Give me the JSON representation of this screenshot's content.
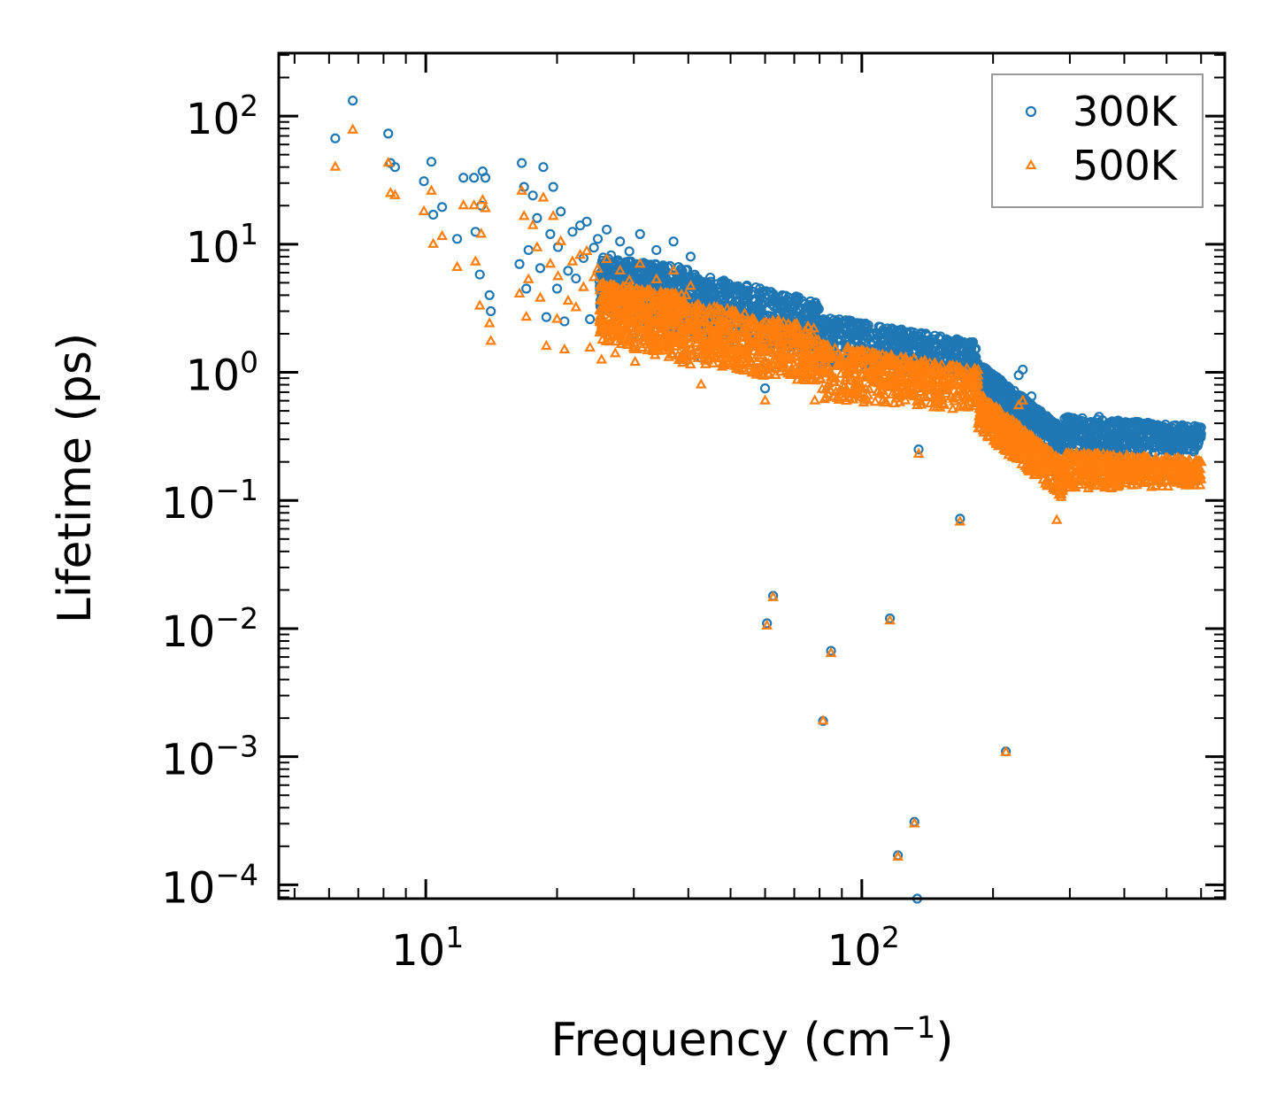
{
  "chart_data": {
    "type": "scatter",
    "title": "",
    "xlabel": "Frequency (cm",
    "xlabel_sup": "−1",
    "xlabel_tail": ")",
    "ylabel": "Lifetime (ps)",
    "xscale": "log",
    "yscale": "log",
    "xlim": [
      4.6,
      680
    ],
    "ylim": [
      7.8e-05,
      310
    ],
    "legend_position": "top-right",
    "x_ticks": [
      {
        "value": 10,
        "base": "10",
        "exp": "1"
      },
      {
        "value": 100,
        "base": "10",
        "exp": "2"
      }
    ],
    "y_ticks": [
      {
        "value": 100,
        "base": "10",
        "exp": "2"
      },
      {
        "value": 10,
        "base": "10",
        "exp": "1"
      },
      {
        "value": 1,
        "base": "10",
        "exp": "0"
      },
      {
        "value": 0.1,
        "base": "10",
        "exp": "−1"
      },
      {
        "value": 0.01,
        "base": "10",
        "exp": "−2"
      },
      {
        "value": 0.001,
        "base": "10",
        "exp": "−3"
      },
      {
        "value": 0.0001,
        "base": "10",
        "exp": "−4"
      }
    ],
    "series": [
      {
        "name": "300K",
        "marker": "circle",
        "color": "#1f77b4",
        "points": [
          [
            6.2,
            67
          ],
          [
            6.8,
            132
          ],
          [
            8.2,
            73
          ],
          [
            8.3,
            43
          ],
          [
            8.5,
            40
          ],
          [
            9.9,
            31
          ],
          [
            10.3,
            44
          ],
          [
            10.4,
            17
          ],
          [
            10.9,
            19.5
          ],
          [
            11.8,
            11
          ],
          [
            12.2,
            33
          ],
          [
            12.9,
            33
          ],
          [
            13.0,
            12.5
          ],
          [
            13.3,
            5.8
          ],
          [
            13.4,
            20
          ],
          [
            13.5,
            37
          ],
          [
            13.7,
            33
          ],
          [
            14.0,
            4.0
          ],
          [
            14.1,
            3.0
          ],
          [
            16.4,
            7.0
          ],
          [
            16.6,
            43
          ],
          [
            16.8,
            28
          ],
          [
            17.0,
            4.5
          ],
          [
            17.2,
            9.0
          ],
          [
            17.6,
            24
          ],
          [
            18.0,
            16
          ],
          [
            18.3,
            6.5
          ],
          [
            18.6,
            40
          ],
          [
            18.9,
            2.7
          ],
          [
            19.3,
            12
          ],
          [
            19.6,
            28
          ],
          [
            20.0,
            4.5
          ],
          [
            20.1,
            9.5
          ],
          [
            20.4,
            18
          ],
          [
            20.8,
            2.5
          ],
          [
            21.2,
            6.2
          ],
          [
            21.7,
            12.5
          ],
          [
            22.1,
            5.4
          ],
          [
            22.6,
            14
          ],
          [
            23.0,
            7.8
          ],
          [
            23.4,
            15
          ],
          [
            23.8,
            2.6
          ],
          [
            24.3,
            9.4
          ],
          [
            24.8,
            11.0
          ],
          [
            25.3,
            2.1
          ],
          [
            26.0,
            13
          ],
          [
            26.6,
            8.2
          ],
          [
            27.2,
            2.4
          ],
          [
            27.9,
            10.5
          ],
          [
            28.6,
            6.6
          ],
          [
            29.3,
            8.8
          ],
          [
            30.2,
            2.0
          ],
          [
            31.0,
            12
          ],
          [
            32.4,
            6.8
          ],
          [
            33.8,
            9.0
          ],
          [
            35.4,
            4.4
          ],
          [
            37.0,
            10.5
          ],
          [
            38.8,
            5.4
          ],
          [
            40.5,
            8.0
          ],
          [
            42.8,
            1.3
          ],
          [
            45.0,
            5.1
          ],
          [
            47.2,
            4.2
          ],
          [
            50.0,
            3.2
          ],
          [
            53.5,
            2.3
          ],
          [
            57.0,
            3.6
          ],
          [
            60.0,
            0.75
          ],
          [
            60.6,
            0.011
          ],
          [
            62.6,
            0.018
          ],
          [
            68.0,
            2.8
          ],
          [
            72.0,
            1.9
          ],
          [
            78.0,
            2.5
          ],
          [
            81.5,
            0.0019
          ],
          [
            85.0,
            0.0067
          ],
          [
            92.0,
            1.6
          ],
          [
            100.0,
            1.3
          ],
          [
            112.0,
            1.35
          ],
          [
            116.0,
            0.012
          ],
          [
            120.0,
            1.2
          ],
          [
            121.0,
            0.00017
          ],
          [
            132.0,
            0.00031
          ],
          [
            135.0,
            0.25
          ],
          [
            134.0,
            7.8e-05
          ],
          [
            150.0,
            1.3
          ],
          [
            168.0,
            0.072
          ],
          [
            175.0,
            1.6
          ],
          [
            190.0,
            0.7
          ],
          [
            204.0,
            0.9
          ],
          [
            214.0,
            0.0011
          ],
          [
            229.0,
            0.95
          ],
          [
            234.0,
            1.05
          ],
          [
            245.0,
            0.65
          ],
          [
            280.0,
            0.3
          ],
          [
            310.0,
            0.4
          ],
          [
            350.0,
            0.45
          ],
          [
            400.0,
            0.33
          ],
          [
            470.0,
            0.35
          ],
          [
            560.0,
            0.3
          ],
          [
            600.0,
            0.33
          ]
        ],
        "bands": [
          {
            "x": [
              25,
              40
            ],
            "y_low_start": 3.0,
            "y_low_end": 2.0,
            "y_high_start": 8.0,
            "y_high_end": 6.5
          },
          {
            "x": [
              40,
              80
            ],
            "y_low_start": 2.0,
            "y_low_end": 1.4,
            "y_high_start": 6.0,
            "y_high_end": 3.6
          },
          {
            "x": [
              80,
              185
            ],
            "y_low_start": 1.1,
            "y_low_end": 0.9,
            "y_high_start": 2.8,
            "y_high_end": 1.7
          },
          {
            "x": [
              185,
              290
            ],
            "y_low_start": 0.7,
            "y_low_end": 0.22,
            "y_high_start": 1.2,
            "y_high_end": 0.36
          },
          {
            "x": [
              290,
              600
            ],
            "y_low_start": 0.22,
            "y_low_end": 0.24,
            "y_high_start": 0.45,
            "y_high_end": 0.38
          }
        ]
      },
      {
        "name": "500K",
        "marker": "triangle",
        "color": "#ff7f0e",
        "points": [
          [
            6.2,
            40
          ],
          [
            6.8,
            78
          ],
          [
            8.2,
            43
          ],
          [
            8.3,
            25
          ],
          [
            8.5,
            24
          ],
          [
            9.9,
            18
          ],
          [
            10.3,
            26
          ],
          [
            10.4,
            10
          ],
          [
            10.9,
            11.5
          ],
          [
            11.8,
            6.6
          ],
          [
            12.2,
            20
          ],
          [
            12.9,
            20
          ],
          [
            13.0,
            7.3
          ],
          [
            13.3,
            3.3
          ],
          [
            13.4,
            12
          ],
          [
            13.5,
            22
          ],
          [
            13.7,
            19
          ],
          [
            14.0,
            2.4
          ],
          [
            14.1,
            1.75
          ],
          [
            16.4,
            4.1
          ],
          [
            16.6,
            26
          ],
          [
            16.8,
            16.5
          ],
          [
            17.0,
            2.7
          ],
          [
            17.2,
            5.3
          ],
          [
            17.6,
            14
          ],
          [
            18.0,
            9.4
          ],
          [
            18.3,
            3.8
          ],
          [
            18.6,
            23
          ],
          [
            18.9,
            1.6
          ],
          [
            19.3,
            7.0
          ],
          [
            19.6,
            16.5
          ],
          [
            20.0,
            2.6
          ],
          [
            20.1,
            5.6
          ],
          [
            20.4,
            10.5
          ],
          [
            20.8,
            1.5
          ],
          [
            21.2,
            3.6
          ],
          [
            21.7,
            7.3
          ],
          [
            22.1,
            3.2
          ],
          [
            22.6,
            8.2
          ],
          [
            23.0,
            4.6
          ],
          [
            23.4,
            8.8
          ],
          [
            23.8,
            1.55
          ],
          [
            24.3,
            5.5
          ],
          [
            24.8,
            6.4
          ],
          [
            25.3,
            1.25
          ],
          [
            26.0,
            7.6
          ],
          [
            26.6,
            4.8
          ],
          [
            27.2,
            1.4
          ],
          [
            27.9,
            6.2
          ],
          [
            28.6,
            3.9
          ],
          [
            29.3,
            5.2
          ],
          [
            30.2,
            1.2
          ],
          [
            31.0,
            7.0
          ],
          [
            32.4,
            4.0
          ],
          [
            33.8,
            5.3
          ],
          [
            35.4,
            2.6
          ],
          [
            37.0,
            6.2
          ],
          [
            38.8,
            3.2
          ],
          [
            40.5,
            4.7
          ],
          [
            42.8,
            0.8
          ],
          [
            45.0,
            3.0
          ],
          [
            47.2,
            2.5
          ],
          [
            50.0,
            1.9
          ],
          [
            53.5,
            1.4
          ],
          [
            57.0,
            2.1
          ],
          [
            60.0,
            0.6
          ],
          [
            60.6,
            0.0105
          ],
          [
            62.6,
            0.0175
          ],
          [
            68.0,
            1.65
          ],
          [
            72.0,
            1.1
          ],
          [
            78.0,
            0.6
          ],
          [
            81.5,
            0.0019
          ],
          [
            85.0,
            0.0064
          ],
          [
            92.0,
            0.9
          ],
          [
            100.0,
            0.75
          ],
          [
            112.0,
            0.8
          ],
          [
            116.0,
            0.0115
          ],
          [
            120.0,
            0.7
          ],
          [
            121.0,
            0.000165
          ],
          [
            132.0,
            0.0003
          ],
          [
            135.0,
            0.23
          ],
          [
            150.0,
            0.7
          ],
          [
            168.0,
            0.068
          ],
          [
            175.0,
            0.9
          ],
          [
            190.0,
            0.35
          ],
          [
            204.0,
            0.45
          ],
          [
            214.0,
            0.00108
          ],
          [
            229.0,
            0.55
          ],
          [
            234.0,
            0.6
          ],
          [
            245.0,
            0.32
          ],
          [
            280.0,
            0.07
          ],
          [
            310.0,
            0.2
          ],
          [
            350.0,
            0.22
          ],
          [
            400.0,
            0.16
          ],
          [
            470.0,
            0.17
          ],
          [
            560.0,
            0.15
          ],
          [
            600.0,
            0.2
          ]
        ],
        "bands": [
          {
            "x": [
              25,
              40
            ],
            "y_low_start": 1.8,
            "y_low_end": 1.1,
            "y_high_start": 5.0,
            "y_high_end": 4.0
          },
          {
            "x": [
              40,
              80
            ],
            "y_low_start": 1.1,
            "y_low_end": 0.8,
            "y_high_start": 3.6,
            "y_high_end": 2.2
          },
          {
            "x": [
              80,
              185
            ],
            "y_low_start": 0.6,
            "y_low_end": 0.5,
            "y_high_start": 1.7,
            "y_high_end": 1.05
          },
          {
            "x": [
              185,
              290
            ],
            "y_low_start": 0.35,
            "y_low_end": 0.1,
            "y_high_start": 0.7,
            "y_high_end": 0.2
          },
          {
            "x": [
              290,
              600
            ],
            "y_low_start": 0.12,
            "y_low_end": 0.13,
            "y_high_start": 0.24,
            "y_high_end": 0.21
          }
        ]
      }
    ]
  }
}
